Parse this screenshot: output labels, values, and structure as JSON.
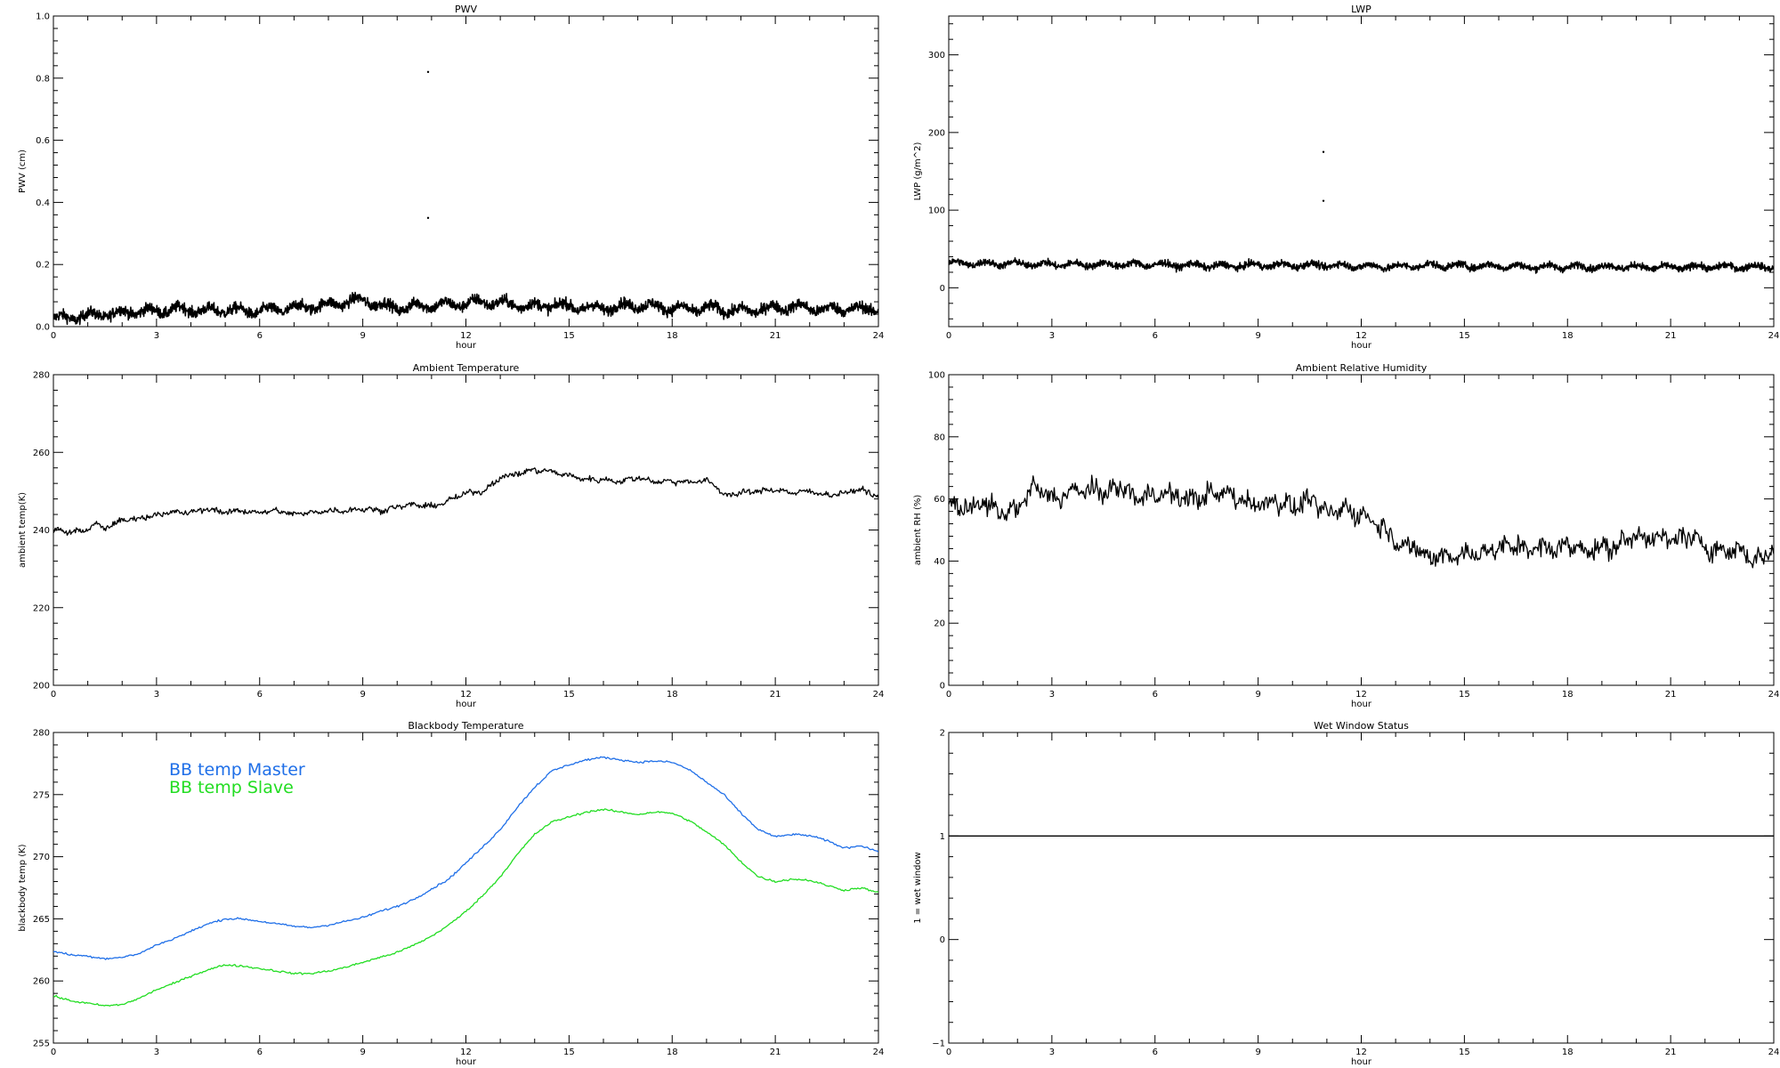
{
  "chart_data": [
    {
      "id": "pwv",
      "type": "line",
      "title": "PWV",
      "xlabel": "hour",
      "ylabel": "PWV (cm)",
      "xlim": [
        0,
        24
      ],
      "ylim": [
        0,
        1
      ],
      "xticks": [
        0,
        3,
        6,
        9,
        12,
        15,
        18,
        21,
        24
      ],
      "yticks": [
        0.0,
        0.2,
        0.4,
        0.6,
        0.8,
        1.0
      ],
      "ytick_labels": [
        "0.0",
        "0.2",
        "0.4",
        "0.6",
        "0.8",
        "1.0"
      ],
      "style": "noisy",
      "noise_amplitude": 0.009,
      "series": [
        {
          "color": "#000000",
          "x": [
            0,
            0.5,
            1,
            1.5,
            2,
            2.5,
            3,
            3.5,
            4,
            4.5,
            5,
            5.5,
            6,
            6.5,
            7,
            7.5,
            8,
            8.5,
            9,
            9.5,
            10,
            10.5,
            11,
            11.5,
            12,
            12.5,
            13,
            13.5,
            14,
            14.5,
            15,
            15.5,
            16,
            16.5,
            17,
            17.5,
            18,
            18.5,
            19,
            19.5,
            20,
            20.5,
            21,
            21.5,
            22,
            22.5,
            23,
            23.5,
            24
          ],
          "y": [
            0.025,
            0.03,
            0.035,
            0.04,
            0.045,
            0.05,
            0.05,
            0.055,
            0.055,
            0.05,
            0.055,
            0.05,
            0.05,
            0.055,
            0.06,
            0.065,
            0.07,
            0.08,
            0.085,
            0.07,
            0.06,
            0.065,
            0.07,
            0.07,
            0.075,
            0.08,
            0.075,
            0.07,
            0.065,
            0.07,
            0.065,
            0.06,
            0.06,
            0.065,
            0.07,
            0.065,
            0.06,
            0.055,
            0.06,
            0.055,
            0.05,
            0.055,
            0.06,
            0.065,
            0.06,
            0.055,
            0.06,
            0.055,
            0.06
          ]
        }
      ],
      "outliers": [
        {
          "x": 10.9,
          "y": 0.82
        },
        {
          "x": 10.9,
          "y": 0.35
        }
      ]
    },
    {
      "id": "lwp",
      "type": "line",
      "title": "LWP",
      "xlabel": "hour",
      "ylabel": "LWP (g/m^2)",
      "xlim": [
        0,
        24
      ],
      "ylim": [
        -50,
        350
      ],
      "xticks": [
        0,
        3,
        6,
        9,
        12,
        15,
        18,
        21,
        24
      ],
      "yticks": [
        0,
        100,
        200,
        300
      ],
      "ytick_labels": [
        "0",
        "100",
        "200",
        "300"
      ],
      "style": "noisy",
      "noise_amplitude": 2.2,
      "series": [
        {
          "color": "#000000",
          "x": [
            0,
            1,
            2,
            3,
            4,
            5,
            6,
            7,
            8,
            9,
            10,
            11,
            12,
            13,
            14,
            15,
            16,
            17,
            18,
            19,
            20,
            21,
            22,
            23,
            24
          ],
          "y": [
            32,
            31,
            31,
            30,
            30,
            30,
            30,
            29,
            28,
            29,
            29,
            29,
            28,
            27,
            29,
            28,
            28,
            27,
            27,
            27,
            27,
            26,
            27,
            27,
            27
          ]
        }
      ],
      "outliers": [
        {
          "x": 10.9,
          "y": 175
        },
        {
          "x": 10.9,
          "y": 112
        }
      ]
    },
    {
      "id": "ambient_temp",
      "type": "line",
      "title": "Ambient Temperature",
      "xlabel": "hour",
      "ylabel": "ambient temp(K)",
      "xlim": [
        0,
        24
      ],
      "ylim": [
        200,
        280
      ],
      "xticks": [
        0,
        3,
        6,
        9,
        12,
        15,
        18,
        21,
        24
      ],
      "yticks": [
        200,
        220,
        240,
        260,
        280
      ],
      "ytick_labels": [
        "200",
        "220",
        "240",
        "260",
        "280"
      ],
      "style": "jagged",
      "noise_amplitude": 0.35,
      "series": [
        {
          "color": "#000000",
          "x": [
            0,
            0.5,
            1,
            1.2,
            1.5,
            2,
            2.5,
            3,
            3.5,
            4,
            4.5,
            5,
            5.5,
            6,
            6.5,
            7,
            7.5,
            8,
            8.5,
            9,
            9.5,
            10,
            10.5,
            11,
            11.5,
            12,
            12.5,
            13,
            13.5,
            14,
            14.5,
            15,
            15.5,
            16,
            16.5,
            17,
            17.5,
            18,
            18.5,
            19,
            19.2,
            19.5,
            20,
            20.5,
            21,
            21.5,
            22,
            22.5,
            23,
            23.5,
            24
          ],
          "y": [
            240,
            239.5,
            240,
            241.5,
            240.5,
            242.5,
            243,
            244,
            244.5,
            244.5,
            245.5,
            244.5,
            245,
            244.5,
            245,
            244,
            244.5,
            245,
            245,
            245.5,
            245,
            246,
            246.5,
            246,
            247.5,
            249.5,
            250,
            253.5,
            254.5,
            255.5,
            255,
            254,
            253,
            253,
            252.5,
            253.5,
            252.5,
            252.5,
            252.5,
            252.5,
            252,
            249,
            249.5,
            250,
            250.5,
            249.5,
            250,
            249,
            249.5,
            250.5,
            248.5
          ]
        }
      ]
    },
    {
      "id": "ambient_rh",
      "type": "line",
      "title": "Ambient Relative Humidity",
      "xlabel": "hour",
      "ylabel": "ambient RH (%)",
      "xlim": [
        0,
        24
      ],
      "ylim": [
        0,
        100
      ],
      "xticks": [
        0,
        3,
        6,
        9,
        12,
        15,
        18,
        21,
        24
      ],
      "yticks": [
        0,
        20,
        40,
        60,
        80,
        100
      ],
      "ytick_labels": [
        "0",
        "20",
        "40",
        "60",
        "80",
        "100"
      ],
      "style": "jagged",
      "noise_amplitude": 1.6,
      "series": [
        {
          "color": "#000000",
          "x": [
            0,
            0.5,
            1,
            1.5,
            2,
            2.5,
            3,
            3.5,
            4,
            4.5,
            5,
            5.5,
            6,
            6.5,
            7,
            7.5,
            8,
            8.5,
            9,
            9.5,
            10,
            10.5,
            11,
            11.5,
            12,
            12.5,
            13,
            13.5,
            14,
            14.5,
            15,
            15.5,
            16,
            16.5,
            17,
            17.5,
            18,
            18.5,
            19,
            19.5,
            20,
            20.5,
            21,
            21.5,
            22,
            22.5,
            23,
            23.5,
            24
          ],
          "y": [
            58,
            57,
            59,
            55,
            57,
            64,
            60,
            62,
            63,
            62,
            64,
            60,
            62,
            61,
            60,
            61,
            62,
            60,
            58,
            60,
            57,
            60,
            55,
            57,
            55,
            52,
            47,
            44,
            41,
            42,
            42,
            43,
            44,
            45,
            44,
            44,
            45,
            44,
            44,
            45,
            49,
            47,
            47,
            48,
            45,
            43,
            44,
            40,
            44
          ]
        }
      ]
    },
    {
      "id": "blackbody_temp",
      "type": "line",
      "title": "Blackbody Temperature",
      "xlabel": "hour",
      "ylabel": "blackbody temp (K)",
      "xlim": [
        0,
        24
      ],
      "ylim": [
        255,
        280
      ],
      "xticks": [
        0,
        3,
        6,
        9,
        12,
        15,
        18,
        21,
        24
      ],
      "yticks": [
        255,
        260,
        265,
        270,
        275,
        280
      ],
      "ytick_labels": [
        "255",
        "260",
        "265",
        "270",
        "275",
        "280"
      ],
      "style": "smooth",
      "noise_amplitude": 0.04,
      "legend": [
        {
          "label": "BB temp Master",
          "color": "#1f6fe8"
        },
        {
          "label": "BB temp Slave",
          "color": "#22dd22"
        }
      ],
      "series": [
        {
          "name": "BB temp Master",
          "color": "#1f6fe8",
          "x": [
            0,
            0.5,
            1,
            1.5,
            2,
            2.5,
            3,
            3.5,
            4,
            4.5,
            5,
            5.5,
            6,
            6.5,
            7,
            7.5,
            8,
            8.5,
            9,
            9.5,
            10,
            10.5,
            11,
            11.5,
            12,
            12.5,
            13,
            13.5,
            14,
            14.5,
            15,
            15.5,
            16,
            16.5,
            17,
            17.5,
            18,
            18.5,
            19,
            19.5,
            20,
            20.5,
            21,
            21.5,
            22,
            22.5,
            23,
            23.5,
            24
          ],
          "y": [
            262.4,
            262.1,
            262.0,
            261.8,
            261.9,
            262.2,
            262.9,
            263.4,
            264.0,
            264.6,
            265.0,
            265.0,
            264.8,
            264.6,
            264.4,
            264.3,
            264.5,
            264.8,
            265.1,
            265.6,
            266.0,
            266.6,
            267.4,
            268.2,
            269.5,
            270.8,
            272.2,
            274.0,
            275.6,
            276.9,
            277.4,
            277.8,
            278.0,
            277.8,
            277.6,
            277.7,
            277.6,
            277.0,
            276.0,
            275.0,
            273.5,
            272.2,
            271.6,
            271.8,
            271.7,
            271.3,
            270.7,
            270.9,
            270.4
          ]
        },
        {
          "name": "BB temp Slave",
          "color": "#22dd22",
          "x": [
            0,
            0.5,
            1,
            1.5,
            2,
            2.5,
            3,
            3.5,
            4,
            4.5,
            5,
            5.5,
            6,
            6.5,
            7,
            7.5,
            8,
            8.5,
            9,
            9.5,
            10,
            10.5,
            11,
            11.5,
            12,
            12.5,
            13,
            13.5,
            14,
            14.5,
            15,
            15.5,
            16,
            16.5,
            17,
            17.5,
            18,
            18.5,
            19,
            19.5,
            20,
            20.5,
            21,
            21.5,
            22,
            22.5,
            23,
            23.5,
            24
          ],
          "y": [
            258.8,
            258.4,
            258.2,
            258.0,
            258.1,
            258.6,
            259.3,
            259.8,
            260.4,
            260.9,
            261.3,
            261.2,
            261.0,
            260.8,
            260.6,
            260.6,
            260.8,
            261.1,
            261.5,
            261.9,
            262.3,
            262.9,
            263.6,
            264.5,
            265.6,
            266.9,
            268.4,
            270.2,
            271.8,
            272.8,
            273.2,
            273.6,
            273.8,
            273.6,
            273.4,
            273.6,
            273.5,
            272.9,
            272.0,
            271.0,
            269.6,
            268.4,
            268.0,
            268.2,
            268.1,
            267.7,
            267.3,
            267.5,
            267.1
          ]
        }
      ]
    },
    {
      "id": "wet_window",
      "type": "line",
      "title": "Wet Window Status",
      "xlabel": "hour",
      "ylabel": "1 = wet window",
      "xlim": [
        0,
        24
      ],
      "ylim": [
        -1,
        2
      ],
      "xticks": [
        0,
        3,
        6,
        9,
        12,
        15,
        18,
        21,
        24
      ],
      "yticks": [
        -1,
        0,
        1,
        2
      ],
      "ytick_labels": [
        "−1",
        "0",
        "1",
        "2"
      ],
      "style": "flat",
      "noise_amplitude": 0,
      "series": [
        {
          "color": "#000000",
          "x": [
            0,
            24
          ],
          "y": [
            1,
            1
          ]
        }
      ]
    }
  ]
}
